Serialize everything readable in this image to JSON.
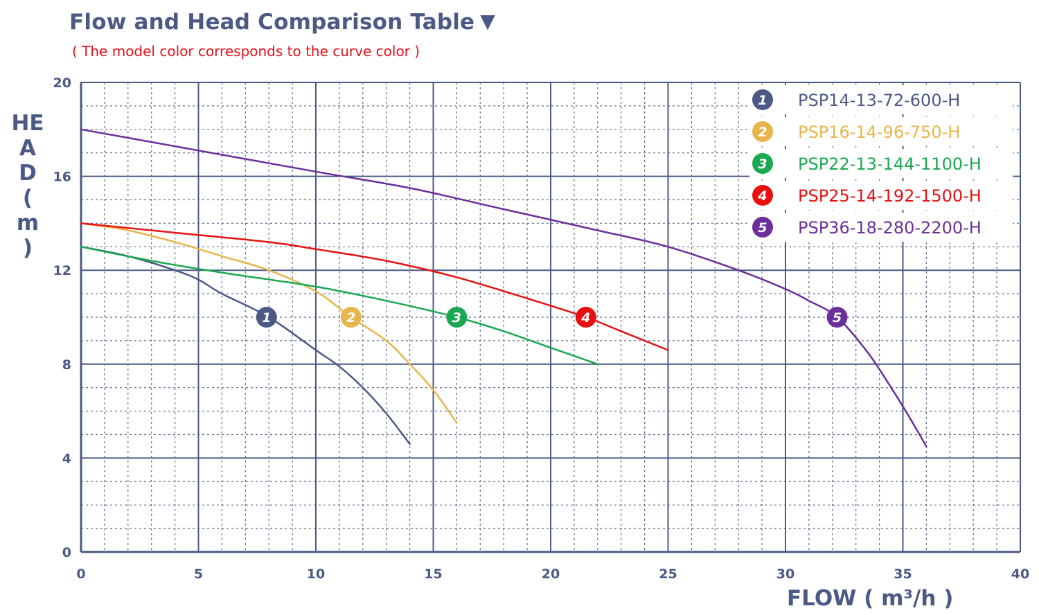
{
  "title": "Flow and Head Comparison Table",
  "title_marker": "▼",
  "subtitle": "( The model color corresponds to the curve color )",
  "xlabel": "FLOW ( m³/h )",
  "ylabel": "HEAD ( m )",
  "colors": {
    "axis": "#4a5a85",
    "grid_major": "#4a5a85",
    "grid_minor": "#4a5a85",
    "subtitle": "#e8101a"
  },
  "chart_data": {
    "type": "line",
    "title": "Flow and Head Comparison Table",
    "subtitle": "( The model color corresponds to the curve color )",
    "xlabel": "FLOW ( m³/h )",
    "ylabel": "HEAD ( m )",
    "xlim": [
      0,
      40
    ],
    "ylim": [
      0,
      20
    ],
    "x_ticks": [
      0,
      5,
      10,
      15,
      20,
      25,
      30,
      35,
      40
    ],
    "y_ticks": [
      0,
      4,
      8,
      12,
      16,
      20
    ],
    "grid": true,
    "legend_position": "top-right",
    "series": [
      {
        "id": "1",
        "name": "PSP14-13-72-600-H",
        "color": "#4a5a85",
        "points": [
          [
            0,
            13
          ],
          [
            2,
            12.6
          ],
          [
            4,
            12
          ],
          [
            5,
            11.6
          ],
          [
            6,
            11
          ],
          [
            8,
            10
          ],
          [
            10,
            8.6
          ],
          [
            11,
            7.9
          ],
          [
            12,
            7
          ],
          [
            13,
            5.9
          ],
          [
            14,
            4.6
          ]
        ],
        "label_point": [
          7.9,
          10
        ]
      },
      {
        "id": "2",
        "name": "PSP16-14-96-750-H",
        "color": "#e8b54a",
        "points": [
          [
            0,
            14
          ],
          [
            2,
            13.7
          ],
          [
            4,
            13.2
          ],
          [
            6,
            12.6
          ],
          [
            8,
            12
          ],
          [
            10,
            11.1
          ],
          [
            11.5,
            10
          ],
          [
            13,
            9
          ],
          [
            14,
            8
          ],
          [
            15,
            6.9
          ],
          [
            16,
            5.5
          ]
        ],
        "label_point": [
          11.5,
          10
        ]
      },
      {
        "id": "3",
        "name": "PSP22-13-144-1100-H",
        "color": "#1aa850",
        "points": [
          [
            0,
            13
          ],
          [
            3,
            12.4
          ],
          [
            6,
            11.9
          ],
          [
            10,
            11.3
          ],
          [
            13,
            10.7
          ],
          [
            16,
            10
          ],
          [
            18,
            9.4
          ],
          [
            20,
            8.7
          ],
          [
            22,
            8
          ]
        ],
        "label_point": [
          16,
          10
        ]
      },
      {
        "id": "4",
        "name": "PSP25-14-192-1500-H",
        "color": "#e81010",
        "points": [
          [
            0,
            14
          ],
          [
            4,
            13.6
          ],
          [
            8,
            13.2
          ],
          [
            10,
            12.9
          ],
          [
            13,
            12.4
          ],
          [
            16,
            11.7
          ],
          [
            19,
            10.8
          ],
          [
            21.5,
            10
          ],
          [
            23,
            9.4
          ],
          [
            25,
            8.6
          ]
        ],
        "label_point": [
          21.5,
          10
        ]
      },
      {
        "id": "5",
        "name": "PSP36-18-280-2200-H",
        "color": "#6b2e9a",
        "points": [
          [
            0,
            18
          ],
          [
            5,
            17.1
          ],
          [
            10,
            16.2
          ],
          [
            14,
            15.5
          ],
          [
            18,
            14.6
          ],
          [
            22,
            13.7
          ],
          [
            25,
            13
          ],
          [
            28,
            12
          ],
          [
            30,
            11.2
          ],
          [
            31,
            10.7
          ],
          [
            32.2,
            10
          ],
          [
            33.5,
            8.5
          ],
          [
            34.5,
            7
          ],
          [
            35.3,
            5.7
          ],
          [
            36,
            4.5
          ]
        ],
        "label_point": [
          32.2,
          10
        ]
      }
    ]
  }
}
